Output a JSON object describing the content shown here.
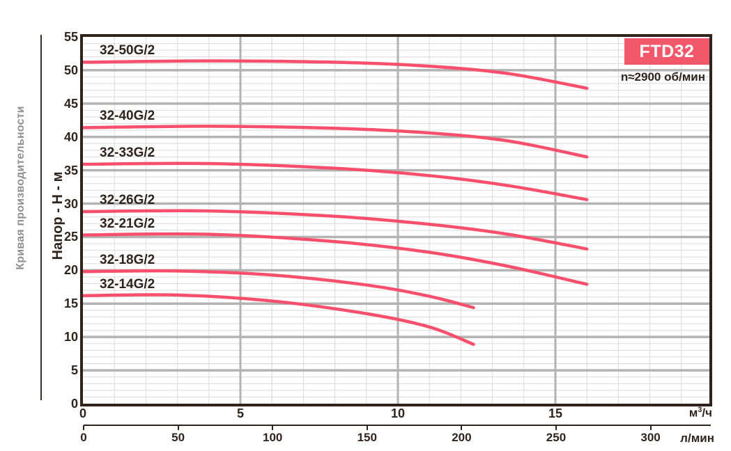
{
  "page": {
    "left_caption": "Кривая производительности"
  },
  "chart_data": {
    "type": "line",
    "badge": "FTD32",
    "speed_note": "n≈2900 об/мин",
    "ylabel": "Напор - H - м",
    "y_axis": {
      "min": 0,
      "max": 55,
      "major_step": 5,
      "minor_step": 1,
      "tick_values": [
        0,
        5,
        10,
        15,
        20,
        25,
        30,
        35,
        40,
        45,
        50,
        55
      ]
    },
    "x_axis_m3h": {
      "label": "м³/ч",
      "min": 0,
      "max": 19.89,
      "tick_values": [
        0,
        5,
        10,
        15
      ],
      "minor_step": 1,
      "major_step": 5
    },
    "x_axis_lmin": {
      "label": "л/мин",
      "tick_values": [
        0,
        50,
        100,
        150,
        200,
        250,
        300
      ]
    },
    "grid": true,
    "legend_position": "labels-on-curves",
    "series": [
      {
        "name": "32-50G/2",
        "points": [
          [
            0,
            51.2
          ],
          [
            4,
            51.4
          ],
          [
            8,
            51.2
          ],
          [
            11,
            50.6
          ],
          [
            13.5,
            49.5
          ],
          [
            16,
            47.3
          ]
        ]
      },
      {
        "name": "32-40G/2",
        "points": [
          [
            0,
            41.4
          ],
          [
            4,
            41.6
          ],
          [
            8,
            41.3
          ],
          [
            11,
            40.6
          ],
          [
            13.5,
            39.4
          ],
          [
            16,
            37.0
          ]
        ]
      },
      {
        "name": "32-33G/2",
        "points": [
          [
            0,
            35.9
          ],
          [
            4,
            36.0
          ],
          [
            8,
            35.3
          ],
          [
            11,
            34.2
          ],
          [
            13.5,
            32.7
          ],
          [
            16,
            30.6
          ]
        ]
      },
      {
        "name": "32-26G/2",
        "points": [
          [
            0,
            28.8
          ],
          [
            4,
            28.9
          ],
          [
            8,
            28.1
          ],
          [
            11,
            26.9
          ],
          [
            13.5,
            25.4
          ],
          [
            16,
            23.2
          ]
        ]
      },
      {
        "name": "32-21G/2",
        "points": [
          [
            0,
            25.3
          ],
          [
            4,
            25.4
          ],
          [
            8,
            24.3
          ],
          [
            11,
            22.7
          ],
          [
            13.5,
            20.6
          ],
          [
            16,
            17.9
          ]
        ]
      },
      {
        "name": "32-18G/2",
        "points": [
          [
            0,
            19.8
          ],
          [
            3,
            19.9
          ],
          [
            6,
            19.3
          ],
          [
            9,
            17.8
          ],
          [
            11,
            16.1
          ],
          [
            12.4,
            14.4
          ]
        ]
      },
      {
        "name": "32-14G/2",
        "points": [
          [
            0,
            16.2
          ],
          [
            3,
            16.3
          ],
          [
            6,
            15.4
          ],
          [
            9,
            13.5
          ],
          [
            11,
            11.5
          ],
          [
            12.4,
            8.9
          ]
        ]
      }
    ],
    "colors": {
      "curve": "#f8506c",
      "badge_bg": "#f2576a",
      "badge_text": "#ffffff",
      "grid_minor": "#d9d9d9",
      "grid_major": "#b3b3b3",
      "frame": "#2f241c",
      "text": "#2f241c",
      "caption": "#8f8f8f"
    }
  }
}
